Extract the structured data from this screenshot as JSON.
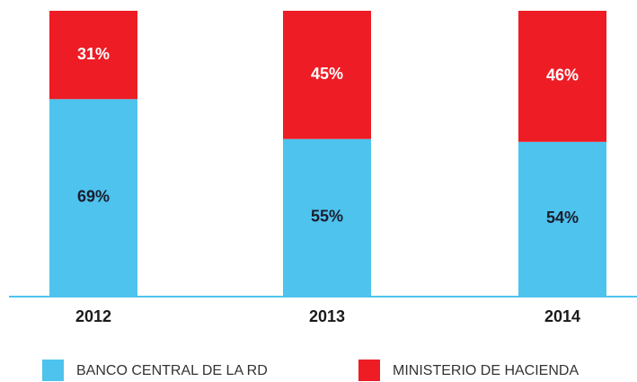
{
  "chart_data": {
    "type": "stacked_bar",
    "categories": [
      "2012",
      "2013",
      "2014"
    ],
    "series": [
      {
        "name": "BANCO CENTRAL DE LA RD",
        "color": "#4dc3ee",
        "values": [
          69,
          55,
          54
        ],
        "value_labels": [
          "69%",
          "55%",
          "54%"
        ]
      },
      {
        "name": "MINISTERIO DE HACIENDA",
        "color": "#ee1c25",
        "values": [
          31,
          45,
          46
        ],
        "value_labels": [
          "31%",
          "45%",
          "46%"
        ]
      }
    ]
  }
}
